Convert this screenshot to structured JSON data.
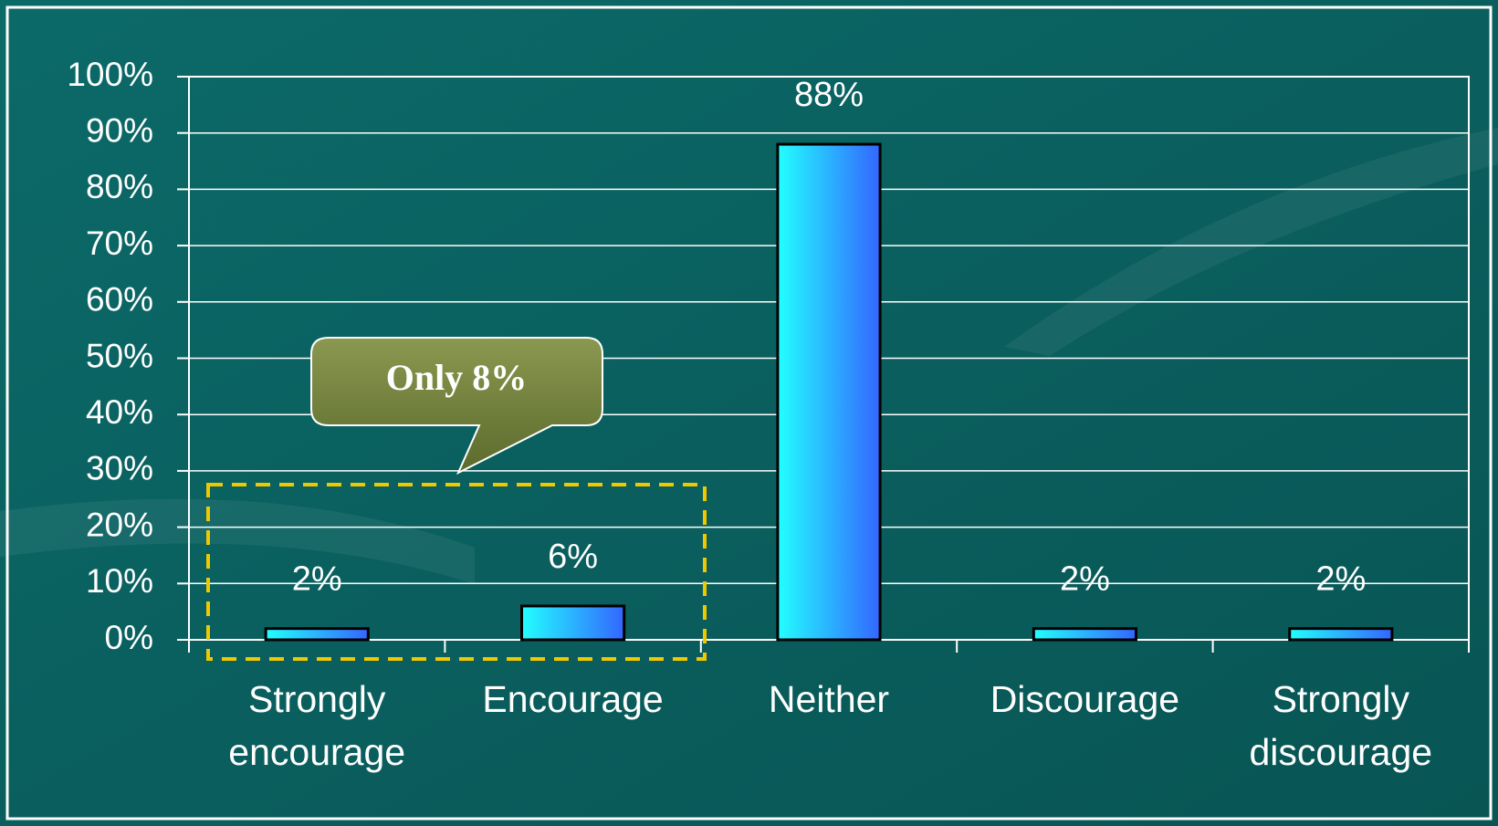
{
  "chart_data": {
    "type": "bar",
    "categories": [
      "Strongly encourage",
      "Encourage",
      "Neither",
      "Discourage",
      "Strongly discourage"
    ],
    "values": [
      2,
      6,
      88,
      2,
      2
    ],
    "value_labels": [
      "2%",
      "6%",
      "88%",
      "2%",
      "2%"
    ],
    "color": "#33ffff",
    "ylim": [
      0,
      100
    ],
    "yticks": [
      {
        "value": 0,
        "label": "0%"
      },
      {
        "value": 10,
        "label": "10%"
      },
      {
        "value": 20,
        "label": "20%"
      },
      {
        "value": 30,
        "label": "30%"
      },
      {
        "value": 40,
        "label": "40%"
      },
      {
        "value": 50,
        "label": "50%"
      },
      {
        "value": 60,
        "label": "60%"
      },
      {
        "value": 70,
        "label": "70%"
      },
      {
        "value": 80,
        "label": "80%"
      },
      {
        "value": 90,
        "label": "90%"
      },
      {
        "value": 100,
        "label": "100%"
      }
    ],
    "grid": true,
    "annotation": "Only 8%"
  }
}
